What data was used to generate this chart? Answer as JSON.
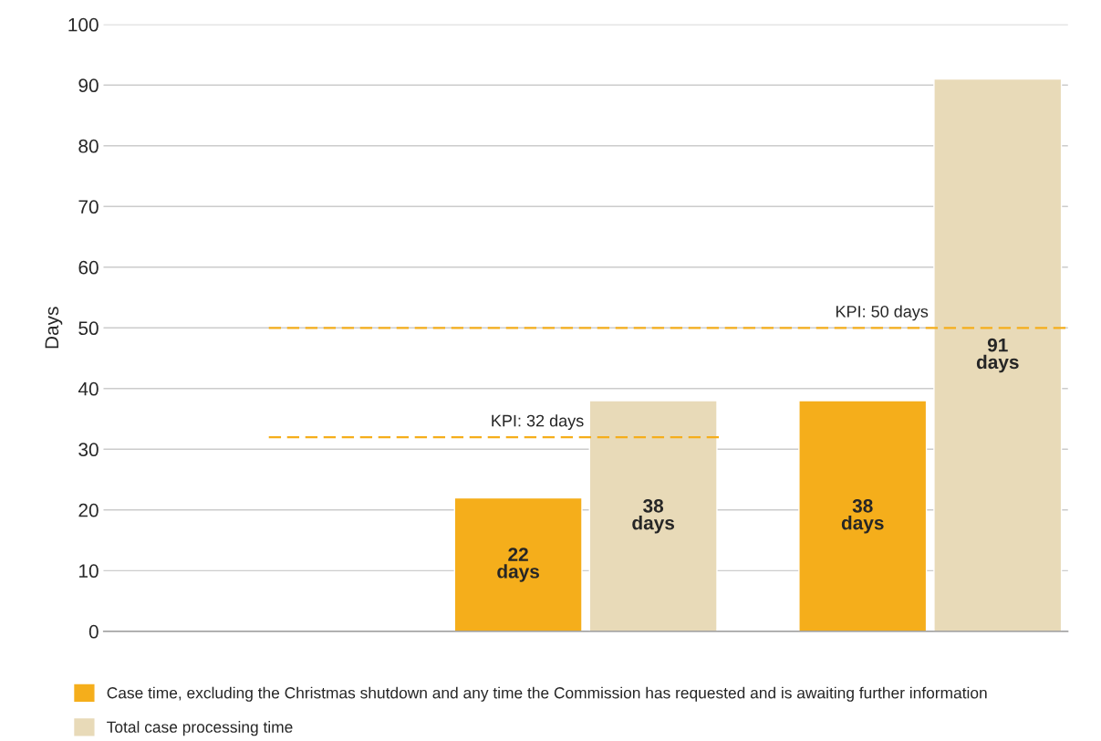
{
  "chart_data": {
    "type": "bar",
    "ylabel": "Days",
    "categories": [
      null,
      null,
      null
    ],
    "series": [
      {
        "name": "Case time, excluding the Christmas shutdown and any time the Commission has requested and is awaiting further information",
        "color": "#f5ae1b",
        "values": [
          null,
          22,
          38
        ],
        "value_labels": [
          null,
          "22 days",
          "38 days"
        ]
      },
      {
        "name": "Total case processing time",
        "color": "#e8dab8",
        "values": [
          null,
          38,
          91
        ],
        "value_labels": [
          null,
          "38 days",
          "91 days"
        ]
      }
    ],
    "ylim": [
      0,
      100
    ],
    "yticks": [
      0,
      10,
      20,
      30,
      40,
      50,
      60,
      70,
      80,
      90,
      100
    ],
    "grid": "y",
    "legend": "bottom",
    "ref_lines": [
      {
        "axis": "y",
        "value": 32,
        "label": "KPI: 32 days",
        "color": "#f5ae1b",
        "line_style": "dashed"
      },
      {
        "axis": "y",
        "value": 50,
        "label": "KPI: 50 days",
        "color": "#f5ae1b",
        "line_style": "dashed"
      }
    ]
  }
}
